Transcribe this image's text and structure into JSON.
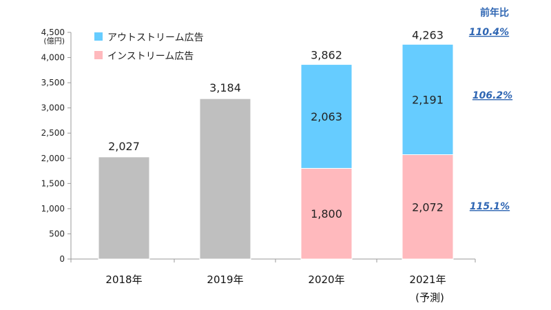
{
  "chart_data": {
    "type": "bar",
    "stacked": true,
    "y_unit": "(億円)",
    "categories": [
      "2018年",
      "2019年",
      "2020年",
      "2021年"
    ],
    "category_notes": [
      "",
      "",
      "",
      "(予測)"
    ],
    "ylim": [
      0,
      4500
    ],
    "yticks": [
      0,
      500,
      1000,
      1500,
      2000,
      2500,
      3000,
      3500,
      4000,
      4500
    ],
    "ytick_labels": [
      "0",
      "500",
      "1,000",
      "1,500",
      "2,000",
      "2,500",
      "3,000",
      "3,500",
      "4,000",
      "4,500"
    ],
    "grid": false,
    "legend_position": "top-left",
    "series": [
      {
        "name": "",
        "color": "#bfbfbf",
        "values": [
          2027,
          3184,
          null,
          null
        ],
        "labels": [
          "2,027",
          "3,184",
          "",
          ""
        ]
      },
      {
        "name": "インストリーム広告",
        "color": "#ffb9bd",
        "values": [
          null,
          null,
          1800,
          2072
        ],
        "labels": [
          "",
          "",
          "1,800",
          "2,072"
        ]
      },
      {
        "name": "アウトストリーム広告",
        "color": "#66ccff",
        "values": [
          null,
          null,
          2063,
          2191
        ],
        "labels": [
          "",
          "",
          "2,063",
          "2,191"
        ]
      }
    ],
    "totals": [
      2027,
      3184,
      3862,
      4263
    ],
    "total_labels": [
      "",
      "",
      "3,862",
      "4,263"
    ],
    "legend": [
      {
        "name": "アウトストリーム広告",
        "color": "#66ccff"
      },
      {
        "name": "インストリーム広告",
        "color": "#ffb9bd"
      }
    ],
    "yoy": {
      "title": "前年比",
      "total": "110.4%",
      "outstream": "106.2%",
      "instream": "115.1%"
    }
  }
}
